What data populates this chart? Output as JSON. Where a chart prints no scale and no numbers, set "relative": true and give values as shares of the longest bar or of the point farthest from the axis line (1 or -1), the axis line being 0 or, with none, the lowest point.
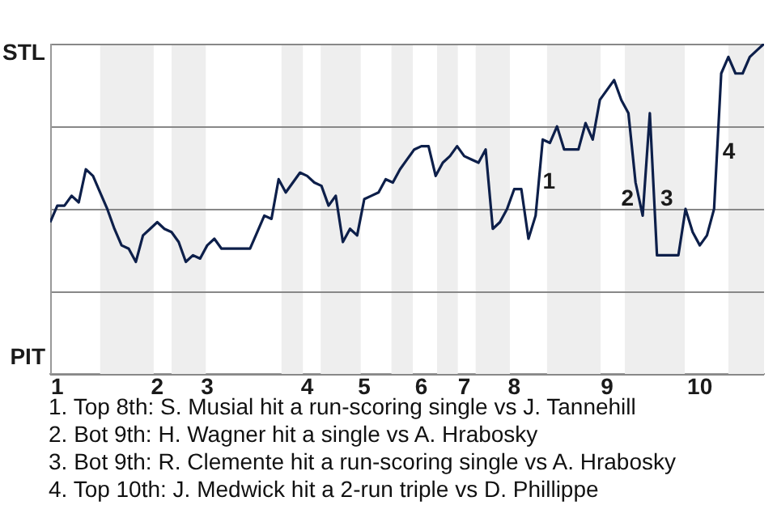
{
  "chart_data": {
    "type": "line",
    "relative": true,
    "grid": "y",
    "legend": false,
    "marker": "none",
    "categories": [
      null,
      "1",
      null,
      null,
      null,
      null,
      null,
      null,
      null,
      null,
      null,
      null,
      null,
      null,
      null,
      "2",
      null,
      null,
      null,
      null,
      null,
      null,
      "3",
      null,
      null,
      null,
      null,
      null,
      null,
      null,
      null,
      null,
      null,
      null,
      null,
      null,
      "4",
      null,
      null,
      null,
      null,
      null,
      null,
      null,
      "5",
      null,
      null,
      null,
      null,
      null,
      null,
      null,
      "6",
      null,
      null,
      null,
      null,
      null,
      "7",
      null,
      null,
      null,
      null,
      null,
      null,
      "8",
      null,
      null,
      null,
      null,
      null,
      null,
      null,
      null,
      null,
      null,
      null,
      null,
      "9",
      null,
      null,
      null,
      null,
      null,
      null,
      null,
      null,
      null,
      null,
      null,
      null,
      "10",
      null,
      null,
      null,
      null,
      null,
      null,
      null,
      null,
      null
    ],
    "series": [
      {
        "color": "#0d1f4a",
        "values": [
          0.46,
          0.51,
          0.51,
          0.54,
          0.52,
          0.62,
          0.6,
          0.55,
          0.5,
          0.44,
          0.39,
          0.38,
          0.34,
          0.42,
          0.44,
          0.46,
          0.44,
          0.43,
          0.4,
          0.34,
          0.36,
          0.35,
          0.39,
          0.41,
          0.38,
          0.38,
          0.38,
          0.38,
          0.38,
          0.43,
          0.48,
          0.47,
          0.59,
          0.55,
          0.58,
          0.61,
          0.6,
          0.58,
          0.57,
          0.51,
          0.54,
          0.4,
          0.44,
          0.42,
          0.53,
          0.54,
          0.55,
          0.59,
          0.58,
          0.62,
          0.65,
          0.68,
          0.69,
          0.69,
          0.6,
          0.64,
          0.66,
          0.69,
          0.66,
          0.65,
          0.64,
          0.68,
          0.44,
          0.46,
          0.5,
          0.56,
          0.56,
          0.41,
          0.48,
          0.71,
          0.7,
          0.75,
          0.68,
          0.68,
          0.68,
          0.76,
          0.71,
          0.83,
          0.86,
          0.89,
          0.83,
          0.79,
          0.58,
          0.48,
          0.79,
          0.36,
          0.36,
          0.36,
          0.36,
          0.5,
          0.43,
          0.39,
          0.42,
          0.5,
          0.91,
          0.96,
          0.91,
          0.91,
          0.96,
          0.98,
          1.0
        ]
      }
    ],
    "annotations": [
      "STL",
      "PIT",
      "1",
      "2",
      "3",
      "4",
      "1. Top 8th: S. Musial hit a run-scoring single vs J. Tannehill",
      "2. Bot 9th: H. Wagner hit a single vs A. Hrabosky",
      "3. Bot 9th: R. Clemente hit a run-scoring single vs A. Hrabosky",
      "4. Top 10th: J. Medwick hit a 2-run triple vs D. Phillippe"
    ]
  }
}
